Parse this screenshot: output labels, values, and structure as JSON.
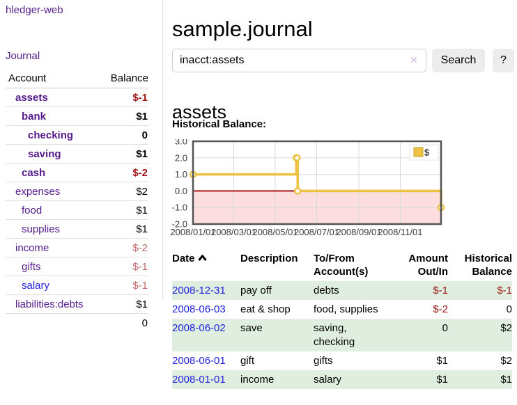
{
  "sidebar": {
    "brand": "hledger-web",
    "journal_link": "Journal",
    "accounts_table": {
      "headers": {
        "account": "Account",
        "balance": "Balance"
      },
      "rows": [
        {
          "name": "assets",
          "indent": 1,
          "bold": true,
          "balance": "$-1",
          "balance_class": "neg"
        },
        {
          "name": "bank",
          "indent": 2,
          "bold": true,
          "balance": "$1",
          "balance_class": ""
        },
        {
          "name": "checking",
          "indent": 3,
          "bold": true,
          "balance": "0",
          "balance_class": ""
        },
        {
          "name": "saving",
          "indent": 3,
          "bold": true,
          "balance": "$1",
          "balance_class": ""
        },
        {
          "name": "cash",
          "indent": 2,
          "bold": true,
          "balance": "$-2",
          "balance_class": "neg"
        },
        {
          "name": "expenses",
          "indent": 1,
          "bold": false,
          "balance": "$2",
          "balance_class": ""
        },
        {
          "name": "food",
          "indent": 2,
          "bold": false,
          "balance": "$1",
          "balance_class": ""
        },
        {
          "name": "supplies",
          "indent": 2,
          "bold": false,
          "balance": "$1",
          "balance_class": ""
        },
        {
          "name": "income",
          "indent": 1,
          "bold": false,
          "balance": "$-2",
          "balance_class": "negmuted"
        },
        {
          "name": "gifts",
          "indent": 2,
          "bold": false,
          "balance": "$-1",
          "balance_class": "negmuted"
        },
        {
          "name": "salary",
          "indent": 2,
          "bold": false,
          "balance": "$-1",
          "balance_class": "negmuted",
          "link_style": "blue"
        },
        {
          "name": "liabilities:debts",
          "indent": 1,
          "bold": false,
          "balance": "$1",
          "balance_class": ""
        }
      ],
      "total": "0"
    }
  },
  "header": {
    "title": "sample.journal"
  },
  "search": {
    "query": "inacct:assets",
    "clear_icon": "✕",
    "button_label": "Search",
    "help_label": "?"
  },
  "account_page": {
    "heading": "assets",
    "chart_label": "Historical Balance:"
  },
  "chart_data": {
    "type": "line",
    "step": true,
    "title": "Historical Balance",
    "series": [
      {
        "name": "$",
        "color": "#edc240",
        "points": [
          [
            "2008-01-01",
            1
          ],
          [
            "2008-06-01",
            2
          ],
          [
            "2008-06-02",
            2
          ],
          [
            "2008-06-03",
            0
          ],
          [
            "2008-12-31",
            -1
          ]
        ]
      }
    ],
    "xlim": [
      "2008-01-01",
      "2008-12-31"
    ],
    "ylim": [
      -2,
      3
    ],
    "yticks": [
      "3.0",
      "2.0",
      "1.0",
      "0.0",
      "-1.0",
      "-2.0"
    ],
    "xticks": [
      "2008/01/01",
      "2008/03/01",
      "2008/05/01",
      "2008/07/01",
      "2008/09/01",
      "2008/11/01"
    ],
    "grid": true,
    "legend_position": "top-right",
    "negative_region_color": "#fcdede",
    "zero_line_color": "#a81717"
  },
  "register_table": {
    "headers": {
      "date": "Date",
      "description": "Description",
      "accounts": "To/From Account(s)",
      "amount": "Amount Out/In",
      "balance": "Historical Balance"
    },
    "rows": [
      {
        "date": "2008-12-31",
        "description": "pay off",
        "accounts": "debts",
        "amount": "$-1",
        "amount_class": "neg",
        "balance": "$-1",
        "balance_class": "neg"
      },
      {
        "date": "2008-06-03",
        "description": "eat & shop",
        "accounts": "food, supplies",
        "amount": "$-2",
        "amount_class": "neg",
        "balance": "0",
        "balance_class": ""
      },
      {
        "date": "2008-06-02",
        "description": "save",
        "accounts": "saving, checking",
        "amount": "0",
        "amount_class": "",
        "balance": "$2",
        "balance_class": ""
      },
      {
        "date": "2008-06-01",
        "description": "gift",
        "accounts": "gifts",
        "amount": "$1",
        "amount_class": "",
        "balance": "$2",
        "balance_class": ""
      },
      {
        "date": "2008-01-01",
        "description": "income",
        "accounts": "salary",
        "amount": "$1",
        "amount_class": "",
        "balance": "$1",
        "balance_class": ""
      }
    ]
  },
  "colors": {
    "link_purple": "#551A8B",
    "link_blue": "#2222dd",
    "negative_strong": "#9f1313",
    "negative_muted": "#c06868",
    "row_stripe_green": "#dfeedf",
    "chart_line_gold": "#edc240",
    "chart_negative_fill": "#fcdede",
    "chart_zero_line": "#a81717"
  }
}
